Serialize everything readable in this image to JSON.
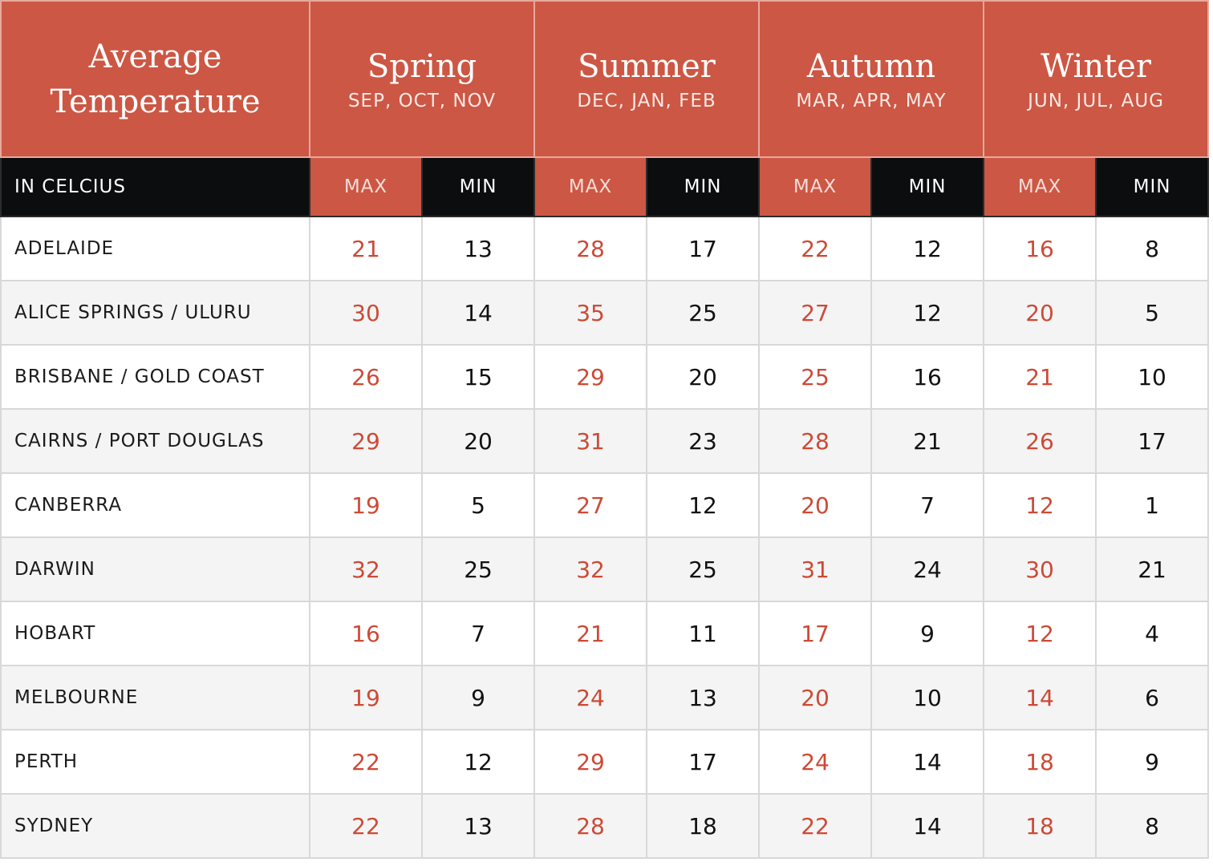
{
  "header": {
    "title_line1": "Average",
    "title_line2": "Temperature",
    "unit_label": "IN CELCIUS",
    "max_label": "MAX",
    "min_label": "MIN",
    "seasons": [
      {
        "name": "Spring",
        "months": "SEP, OCT, NOV"
      },
      {
        "name": "Summer",
        "months": "DEC, JAN, FEB"
      },
      {
        "name": "Autumn",
        "months": "MAR, APR, MAY"
      },
      {
        "name": "Winter",
        "months": "JUN, JUL, AUG"
      }
    ]
  },
  "colors": {
    "accent": "#cc5744",
    "header_dark": "#0c0d0f",
    "max_text": "#cc4a36",
    "min_text": "#111111",
    "stripe": "#f4f4f4"
  },
  "chart_data": {
    "type": "table",
    "columns": [
      "Spring MAX",
      "Spring MIN",
      "Summer MAX",
      "Summer MIN",
      "Autumn MAX",
      "Autumn MIN",
      "Winter MAX",
      "Winter MIN"
    ],
    "rows": [
      {
        "city": "ADELAIDE",
        "values": [
          21,
          13,
          28,
          17,
          22,
          12,
          16,
          8
        ]
      },
      {
        "city": "ALICE SPRINGS / ULURU",
        "values": [
          30,
          14,
          35,
          25,
          27,
          12,
          20,
          5
        ]
      },
      {
        "city": "BRISBANE / GOLD COAST",
        "values": [
          26,
          15,
          29,
          20,
          25,
          16,
          21,
          10
        ]
      },
      {
        "city": "CAIRNS / PORT DOUGLAS",
        "values": [
          29,
          20,
          31,
          23,
          28,
          21,
          26,
          17
        ]
      },
      {
        "city": "CANBERRA",
        "values": [
          19,
          5,
          27,
          12,
          20,
          7,
          12,
          1
        ]
      },
      {
        "city": "DARWIN",
        "values": [
          32,
          25,
          32,
          25,
          31,
          24,
          30,
          21
        ]
      },
      {
        "city": "HOBART",
        "values": [
          16,
          7,
          21,
          11,
          17,
          9,
          12,
          4
        ]
      },
      {
        "city": "MELBOURNE",
        "values": [
          19,
          9,
          24,
          13,
          20,
          10,
          14,
          6
        ]
      },
      {
        "city": "PERTH",
        "values": [
          22,
          12,
          29,
          17,
          24,
          14,
          18,
          9
        ]
      },
      {
        "city": "SYDNEY",
        "values": [
          22,
          13,
          28,
          18,
          22,
          14,
          18,
          8
        ]
      }
    ]
  }
}
